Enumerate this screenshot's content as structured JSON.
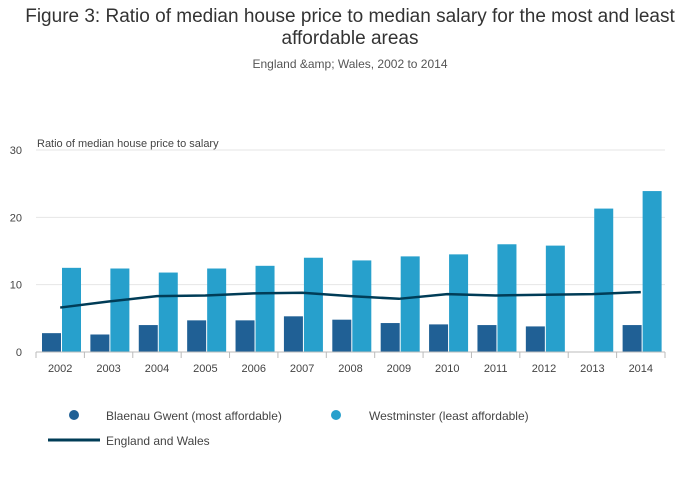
{
  "chart_data": {
    "type": "bar",
    "title": "Figure 3: Ratio of median house price to median salary for the most and least affordable areas",
    "subtitle": "England &amp; Wales, 2002 to 2014",
    "ylabel": "Ratio of median house price to salary",
    "xlabel": "",
    "ylim": [
      0,
      30
    ],
    "yticks": [
      0,
      10,
      20,
      30
    ],
    "grid": true,
    "categories": [
      "2002",
      "2003",
      "2004",
      "2005",
      "2006",
      "2007",
      "2008",
      "2009",
      "2010",
      "2011",
      "2012",
      "2013",
      "2014"
    ],
    "series": [
      {
        "name": "Blaenau Gwent (most affordable)",
        "type": "bar",
        "color": "#206095",
        "values": [
          2.8,
          2.6,
          4.0,
          4.7,
          4.7,
          5.3,
          4.8,
          4.3,
          4.1,
          4.0,
          3.8,
          null,
          4.0
        ]
      },
      {
        "name": "Westminster (least affordable)",
        "type": "bar",
        "color": "#27a0cc",
        "values": [
          12.5,
          12.4,
          11.8,
          12.4,
          12.8,
          14.0,
          13.6,
          14.2,
          14.5,
          16.0,
          15.8,
          21.3,
          23.9
        ]
      },
      {
        "name": "England and Wales",
        "type": "line",
        "color": "#003c57",
        "values": [
          6.6,
          7.5,
          8.3,
          8.4,
          8.7,
          8.8,
          8.3,
          7.9,
          8.6,
          8.4,
          8.5,
          8.6,
          8.9
        ]
      }
    ],
    "legend_position": "bottom"
  }
}
